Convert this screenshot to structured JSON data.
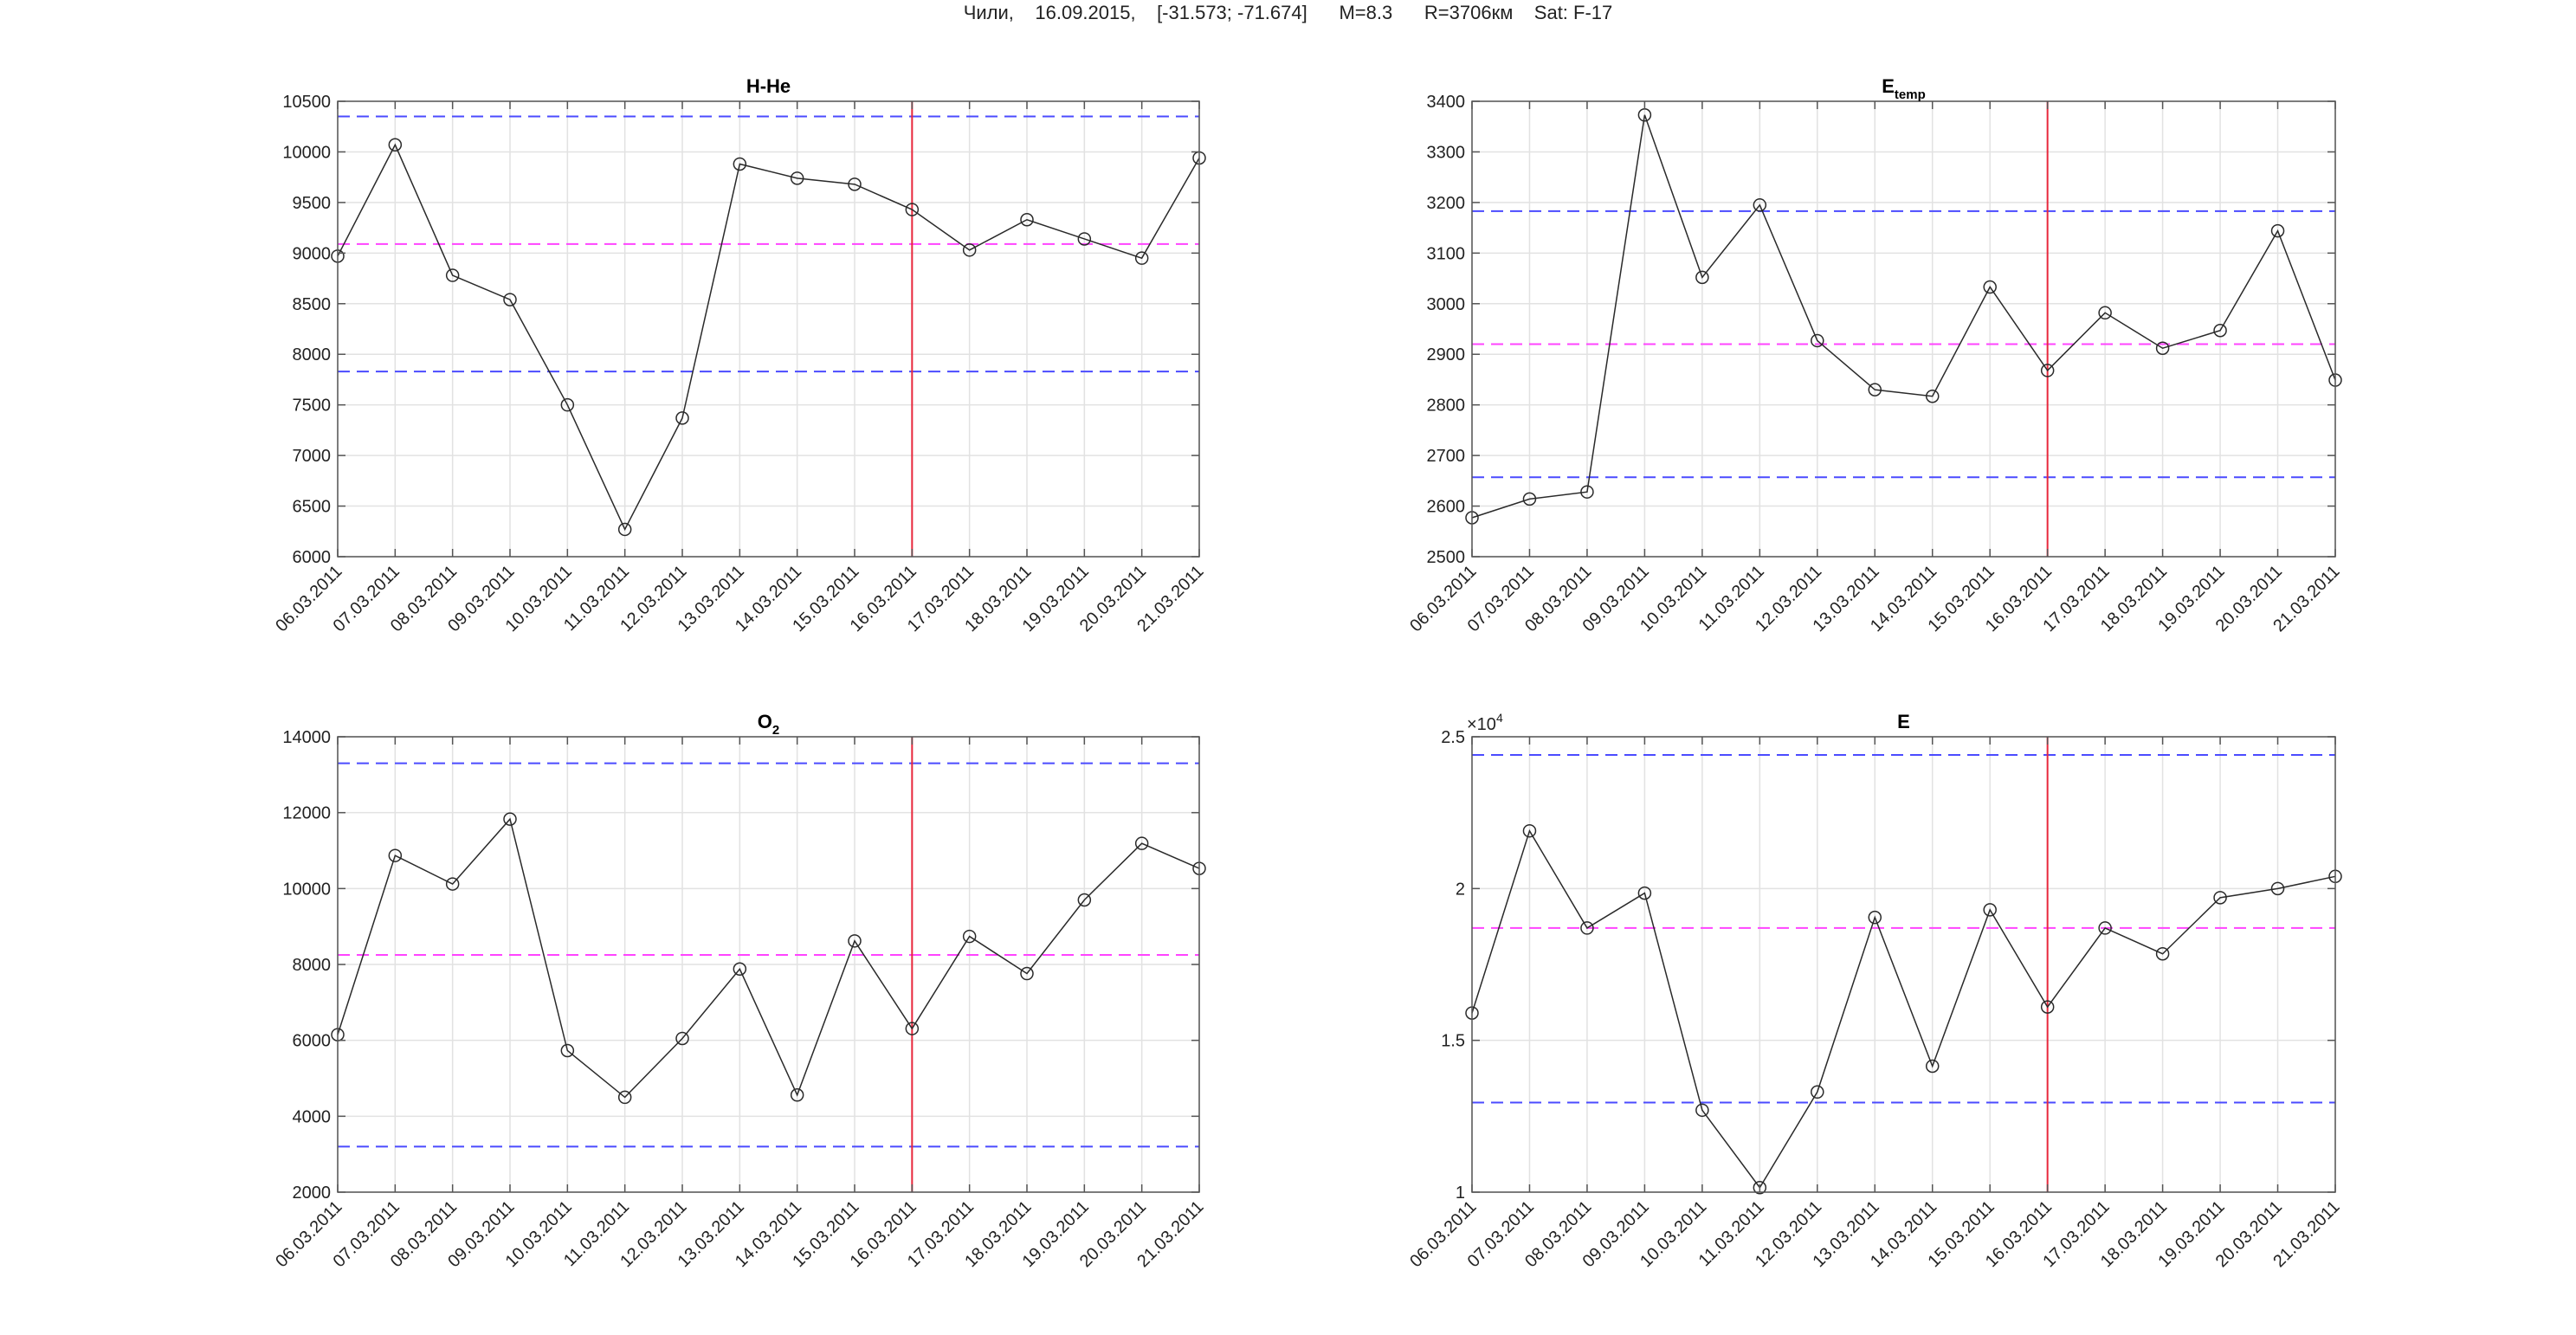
{
  "header": {
    "location": "Чили,",
    "date": "16.09.2015,",
    "coords": "[-31.573; -71.674]",
    "magnitude": "M=8.3",
    "radius": "R=3706км",
    "satellite": "Sat: F-17"
  },
  "colors": {
    "series": "#2a2a2a",
    "event_line": "#e8283c",
    "mean_line": "#ff44ff",
    "bound_line": "#4b4bff",
    "grid": "#e2e2e2"
  },
  "chart_data": [
    {
      "type": "line",
      "title": "H-He",
      "title_sub": "",
      "x": [
        "06.03.2011",
        "07.03.2011",
        "08.03.2011",
        "09.03.2011",
        "10.03.2011",
        "11.03.2011",
        "12.03.2011",
        "13.03.2011",
        "14.03.2011",
        "15.03.2011",
        "16.03.2011",
        "17.03.2011",
        "18.03.2011",
        "19.03.2011",
        "20.03.2011",
        "21.03.2011"
      ],
      "values": [
        8970,
        10070,
        8780,
        8540,
        7500,
        6270,
        7370,
        9880,
        9740,
        9680,
        9430,
        9030,
        9330,
        9140,
        8950,
        9940
      ],
      "ylim": [
        6000,
        10500
      ],
      "yticks": [
        "6000",
        "6500",
        "7000",
        "7500",
        "8000",
        "8500",
        "9000",
        "9500",
        "10000",
        "10500"
      ],
      "ytick_values": [
        6000,
        6500,
        7000,
        7500,
        8000,
        8500,
        9000,
        9500,
        10000,
        10500
      ],
      "exponent": "",
      "event_x": "16.03.2011",
      "mean": 9090,
      "upper_bound": 10350,
      "lower_bound": 7830,
      "grid": true
    },
    {
      "type": "line",
      "title": "E",
      "title_sub": "temp",
      "x": [
        "06.03.2011",
        "07.03.2011",
        "08.03.2011",
        "09.03.2011",
        "10.03.2011",
        "11.03.2011",
        "12.03.2011",
        "13.03.2011",
        "14.03.2011",
        "15.03.2011",
        "16.03.2011",
        "17.03.2011",
        "18.03.2011",
        "19.03.2011",
        "20.03.2011",
        "21.03.2011"
      ],
      "values": [
        2577,
        2614,
        2628,
        3373,
        3052,
        3195,
        2927,
        2830,
        2817,
        3033,
        2868,
        2982,
        2912,
        2947,
        3144,
        2849
      ],
      "ylim": [
        2500,
        3400
      ],
      "yticks": [
        "2500",
        "2600",
        "2700",
        "2800",
        "2900",
        "3000",
        "3100",
        "3200",
        "3300",
        "3400"
      ],
      "ytick_values": [
        2500,
        2600,
        2700,
        2800,
        2900,
        3000,
        3100,
        3200,
        3300,
        3400
      ],
      "exponent": "",
      "event_x": "16.03.2011",
      "mean": 2920,
      "upper_bound": 3183,
      "lower_bound": 2657,
      "grid": true
    },
    {
      "type": "line",
      "title": "O",
      "title_sub": "2",
      "x": [
        "06.03.2011",
        "07.03.2011",
        "08.03.2011",
        "09.03.2011",
        "10.03.2011",
        "11.03.2011",
        "12.03.2011",
        "13.03.2011",
        "14.03.2011",
        "15.03.2011",
        "16.03.2011",
        "17.03.2011",
        "18.03.2011",
        "19.03.2011",
        "20.03.2011",
        "21.03.2011"
      ],
      "values": [
        6150,
        10870,
        10120,
        11830,
        5730,
        4500,
        6050,
        7880,
        4560,
        8620,
        6310,
        8740,
        7760,
        9700,
        11190,
        10530
      ],
      "ylim": [
        2000,
        14000
      ],
      "yticks": [
        "2000",
        "4000",
        "6000",
        "8000",
        "10000",
        "12000",
        "14000"
      ],
      "ytick_values": [
        2000,
        4000,
        6000,
        8000,
        10000,
        12000,
        14000
      ],
      "exponent": "",
      "event_x": "16.03.2011",
      "mean": 8250,
      "upper_bound": 13300,
      "lower_bound": 3200,
      "grid": true
    },
    {
      "type": "line",
      "title": "E",
      "title_sub": "",
      "x": [
        "06.03.2011",
        "07.03.2011",
        "08.03.2011",
        "09.03.2011",
        "10.03.2011",
        "11.03.2011",
        "12.03.2011",
        "13.03.2011",
        "14.03.2011",
        "15.03.2011",
        "16.03.2011",
        "17.03.2011",
        "18.03.2011",
        "19.03.2011",
        "20.03.2011",
        "21.03.2011"
      ],
      "values": [
        15900,
        21900,
        18700,
        19850,
        12700,
        10150,
        13300,
        19050,
        14150,
        19300,
        16100,
        18700,
        17850,
        19700,
        20000,
        20400
      ],
      "ylim": [
        10000,
        25000
      ],
      "yticks": [
        "1",
        "1.5",
        "2",
        "2.5"
      ],
      "ytick_values": [
        10000,
        15000,
        20000,
        25000
      ],
      "exponent": "×10",
      "exponent_power": "4",
      "event_x": "16.03.2011",
      "mean": 18700,
      "upper_bound": 24400,
      "lower_bound": 12950,
      "grid": true
    }
  ]
}
